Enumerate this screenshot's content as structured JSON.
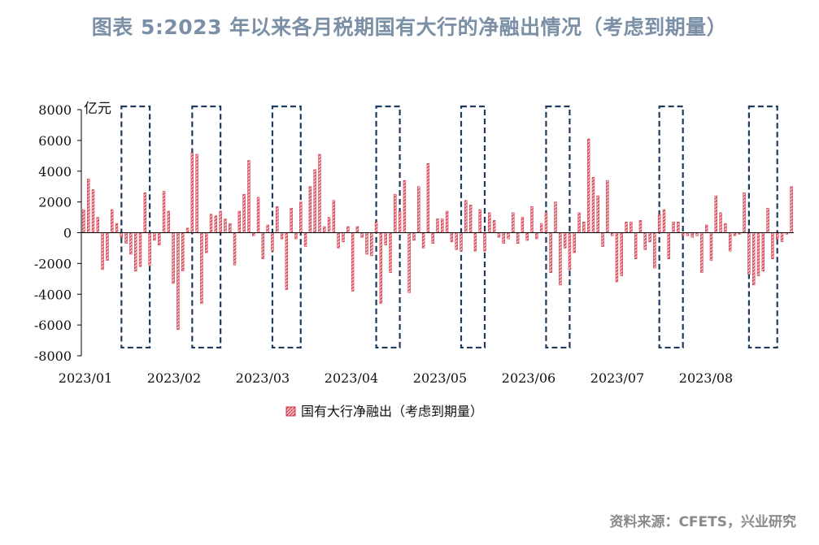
{
  "title": "图表 5:2023 年以来各月税期国有大行的净融出情况（考虑到期量）",
  "source": "资料来源：CFETS，兴业研究",
  "colors": {
    "bar_fill": "#f2c4cb",
    "bar_stroke": "#d0303f",
    "box": "#1f3b5c",
    "title": "#7b90a6"
  },
  "chart_data": {
    "type": "bar",
    "title": "图表 5:2023 年以来各月税期国有大行的净融出情况（考虑到期量）",
    "unit_label": "亿元",
    "ylim": [
      -8000,
      8000
    ],
    "yticks": [
      8000,
      6000,
      4000,
      2000,
      0,
      -2000,
      -4000,
      -6000,
      -8000
    ],
    "x_tick_labels": [
      "2023/01",
      "2023/02",
      "2023/03",
      "2023/04",
      "2023/05",
      "2023/06",
      "2023/07",
      "2023/08"
    ],
    "legend": [
      {
        "label": "国有大行净融出（考虑到期量）"
      }
    ],
    "grid": false,
    "series": [
      {
        "name": "国有大行净融出（考虑到期量）",
        "values": [
          1500,
          3500,
          2800,
          1000,
          -2400,
          -1800,
          1500,
          600,
          -300,
          -700,
          -1400,
          -2500,
          -2200,
          2600,
          -2100,
          -500,
          -800,
          2700,
          1400,
          -3300,
          -6300,
          -2500,
          300,
          5200,
          5100,
          -4600,
          -1300,
          1200,
          1100,
          1400,
          900,
          600,
          -2100,
          1400,
          2500,
          4700,
          -200,
          2300,
          -1700,
          500,
          -1200,
          1700,
          -400,
          -3700,
          1600,
          -400,
          2000,
          -900,
          3000,
          4100,
          5100,
          400,
          1000,
          2100,
          -1000,
          -600,
          400,
          -3800,
          400,
          -300,
          -1400,
          -1500,
          700,
          -4600,
          -800,
          -2600,
          2500,
          1400,
          3400,
          -3900,
          -500,
          3000,
          -1000,
          4500,
          -700,
          900,
          900,
          1400,
          -600,
          -1100,
          -1200,
          2100,
          1800,
          -1200,
          1500,
          -1200,
          1300,
          800,
          -300,
          -700,
          -400,
          1300,
          -700,
          1000,
          -500,
          1700,
          -400,
          600,
          1300,
          -2600,
          2000,
          -3400,
          -1000,
          -2400,
          -1300,
          1300,
          700,
          6100,
          3600,
          2400,
          -900,
          3400,
          -200,
          -3200,
          -2800,
          700,
          700,
          -1700,
          800,
          -1100,
          -600,
          -2300,
          1200,
          1500,
          -1700,
          700,
          700,
          -200,
          -200,
          -300,
          -200,
          -2600,
          500,
          -1800,
          2400,
          1300,
          600,
          -1200,
          -200,
          -100,
          2600,
          -2700,
          -3400,
          -2800,
          -2500,
          1600,
          -1700,
          -400,
          -600,
          -100,
          3000
        ]
      }
    ],
    "highlighted_periods": [
      {
        "start_index": 9,
        "end_index": 13
      },
      {
        "start_index": 24,
        "end_index": 28
      },
      {
        "start_index": 41,
        "end_index": 45
      },
      {
        "start_index": 63,
        "end_index": 66
      },
      {
        "start_index": 81,
        "end_index": 84
      },
      {
        "start_index": 99,
        "end_index": 102
      },
      {
        "start_index": 123,
        "end_index": 126
      },
      {
        "start_index": 142,
        "end_index": 146
      }
    ]
  }
}
